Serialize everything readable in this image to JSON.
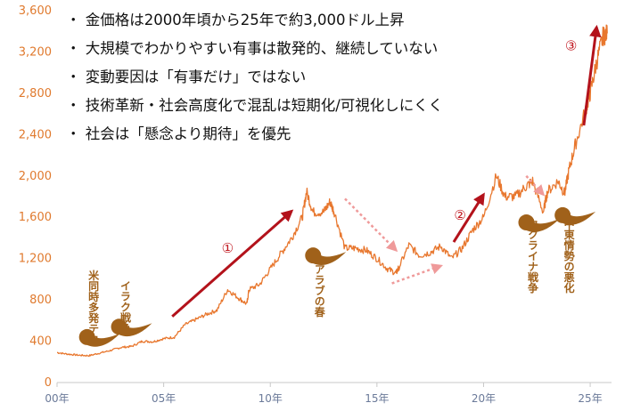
{
  "chart_data": {
    "type": "line",
    "xlabel": "",
    "ylabel": "",
    "xlim": [
      2000,
      2026
    ],
    "ylim": [
      0,
      3600
    ],
    "y_ticks": [
      0,
      400,
      800,
      1200,
      1600,
      2000,
      2400,
      2800,
      3200,
      3600
    ],
    "y_tick_labels": [
      "0",
      "400",
      "800",
      "1,200",
      "1,600",
      "2,000",
      "2,400",
      "2,800",
      "3,200",
      "3,600"
    ],
    "x_ticks": [
      2000,
      2005,
      2010,
      2015,
      2020,
      2025
    ],
    "x_tick_labels": [
      "00年",
      "05年",
      "10年",
      "15年",
      "20年",
      "25年"
    ],
    "grid": false,
    "line_color": "#e8772e",
    "series": [
      {
        "points": [
          [
            2000,
            290
          ],
          [
            2000.5,
            275
          ],
          [
            2001,
            265
          ],
          [
            2001.5,
            260
          ],
          [
            2002,
            285
          ],
          [
            2002.5,
            310
          ],
          [
            2003,
            340
          ],
          [
            2003.5,
            350
          ],
          [
            2004,
            400
          ],
          [
            2004.5,
            395
          ],
          [
            2005,
            425
          ],
          [
            2005.5,
            440
          ],
          [
            2006,
            560
          ],
          [
            2006.5,
            610
          ],
          [
            2007,
            660
          ],
          [
            2007.5,
            700
          ],
          [
            2008,
            900
          ],
          [
            2008.5,
            820
          ],
          [
            2008.9,
            760
          ],
          [
            2009,
            900
          ],
          [
            2009.5,
            950
          ],
          [
            2010,
            1100
          ],
          [
            2010.5,
            1250
          ],
          [
            2011,
            1400
          ],
          [
            2011.5,
            1600
          ],
          [
            2011.7,
            1850
          ],
          [
            2012,
            1650
          ],
          [
            2012.5,
            1650
          ],
          [
            2012.8,
            1750
          ],
          [
            2013,
            1650
          ],
          [
            2013.5,
            1300
          ],
          [
            2014,
            1300
          ],
          [
            2014.5,
            1280
          ],
          [
            2015,
            1200
          ],
          [
            2015.5,
            1100
          ],
          [
            2015.9,
            1060
          ],
          [
            2016,
            1100
          ],
          [
            2016.5,
            1330
          ],
          [
            2017,
            1230
          ],
          [
            2017.5,
            1260
          ],
          [
            2018,
            1320
          ],
          [
            2018.5,
            1200
          ],
          [
            2019,
            1300
          ],
          [
            2019.5,
            1480
          ],
          [
            2020,
            1600
          ],
          [
            2020.6,
            2000
          ],
          [
            2021,
            1800
          ],
          [
            2021.5,
            1800
          ],
          [
            2022,
            1900
          ],
          [
            2022.3,
            1950
          ],
          [
            2022.8,
            1650
          ],
          [
            2023,
            1850
          ],
          [
            2023.5,
            1950
          ],
          [
            2023.8,
            1830
          ],
          [
            2024,
            2050
          ],
          [
            2024.3,
            2300
          ],
          [
            2024.8,
            2650
          ],
          [
            2025,
            2800
          ],
          [
            2025.3,
            3100
          ],
          [
            2025.6,
            3350
          ],
          [
            2025.8,
            3380
          ]
        ]
      }
    ],
    "annotations": {
      "bullets": [
        "・ 金価格は2000年頃から25年で約3,000ドル上昇",
        "・ 大規模でわかりやすい有事は散発的、継続していない",
        "・ 変動要因は「有事だけ」ではない",
        "・ 技術革新・社会高度化で混乱は短期化/可視化しにくく",
        "・ 社会は「懸念より期待」を優先"
      ],
      "events": [
        {
          "label": "米同時多発テロ",
          "x": 2001.7,
          "y": 1090,
          "marker_y": 440
        },
        {
          "label": "イラク戦争",
          "x": 2003.2,
          "y": 990,
          "marker_y": 540
        },
        {
          "label": "アラブの春",
          "x": 2012.3,
          "y": 1150,
          "marker_y": 1230
        },
        {
          "label": "ウクライナ戦争",
          "x": 2022.3,
          "y": 1590,
          "marker_y": 1550
        },
        {
          "label": "中東情勢の悪化",
          "x": 2024.0,
          "y": 1590,
          "marker_y": 1620
        }
      ],
      "trend_arrows": [
        {
          "label": "①",
          "from": [
            2005.4,
            640
          ],
          "to": [
            2011.0,
            1660
          ],
          "label_at": [
            2008.0,
            1300
          ]
        },
        {
          "label": "②",
          "from": [
            2018.6,
            1360
          ],
          "to": [
            2020.0,
            1820
          ],
          "label_at": [
            2018.9,
            1620
          ]
        },
        {
          "label": "③",
          "from": [
            2024.7,
            2490
          ],
          "to": [
            2025.3,
            3440
          ],
          "label_at": [
            2024.1,
            3260
          ]
        }
      ],
      "secondary_arrows": [
        {
          "from": [
            2013.5,
            1780
          ],
          "to": [
            2015.9,
            1280
          ]
        },
        {
          "from": [
            2015.7,
            960
          ],
          "to": [
            2018.0,
            1130
          ]
        },
        {
          "from": [
            2022.0,
            2000
          ],
          "to": [
            2022.8,
            1820
          ]
        }
      ]
    }
  }
}
